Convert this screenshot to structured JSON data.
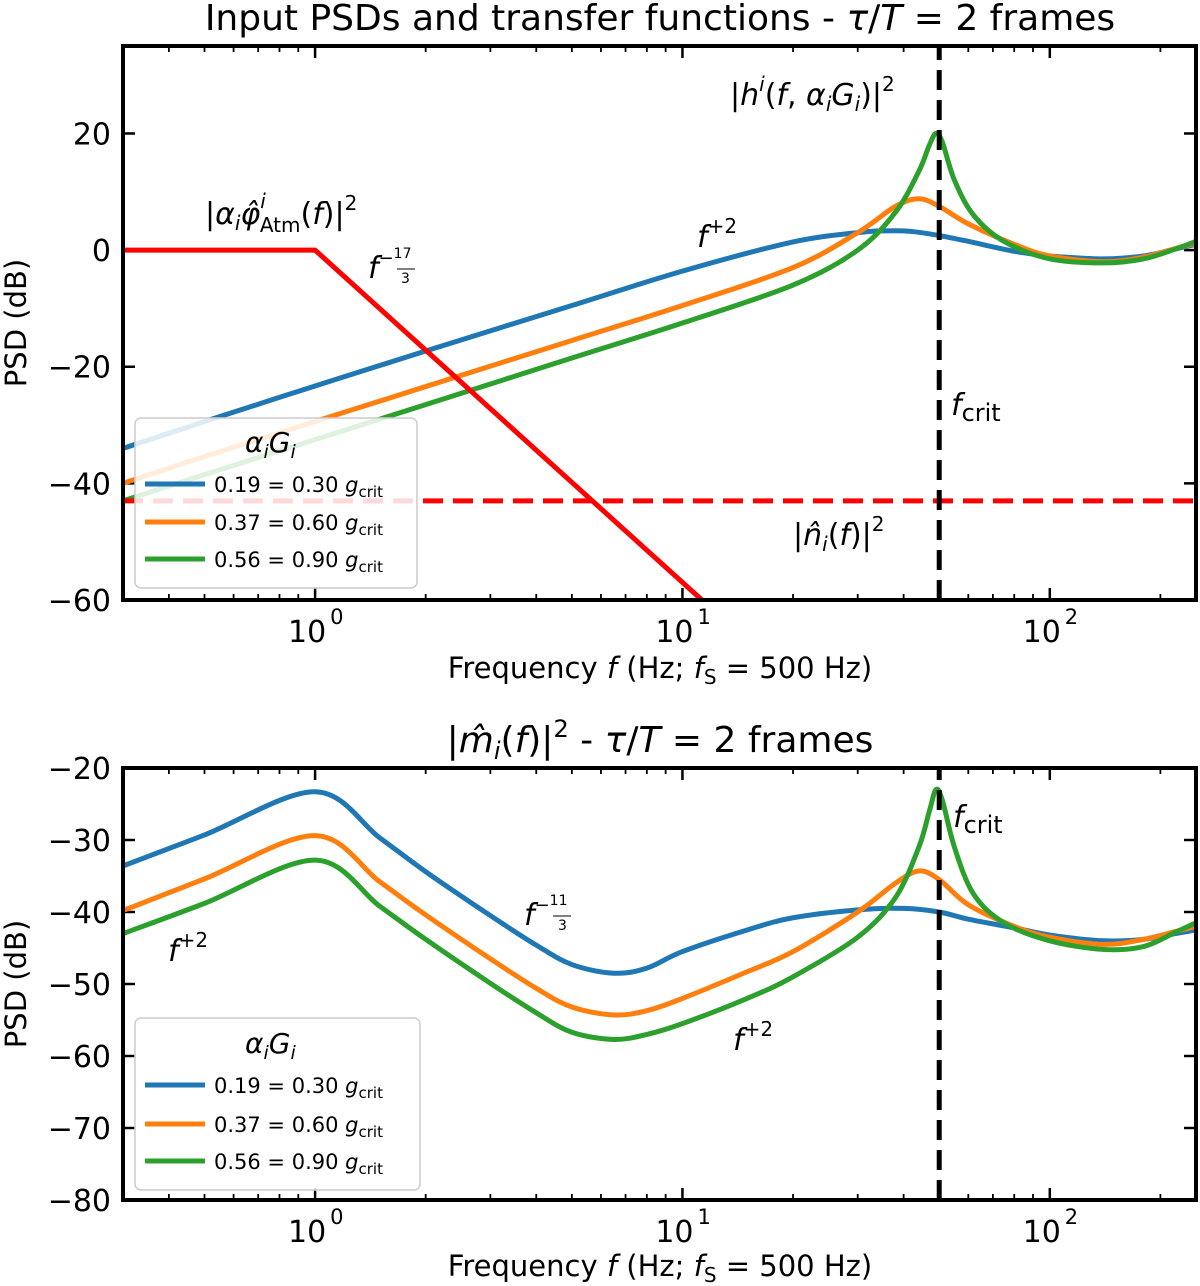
{
  "chart_data": [
    {
      "type": "line",
      "title": "Input PSDs and transfer functions - τ/T = 2 frames",
      "title_prefix": "Input PSDs and transfer functions - ",
      "title_math": "τ/T = 2 frames",
      "xlabel": "Frequency f (Hz; fS = 500 Hz)",
      "ylabel": "PSD (dB)",
      "xscale": "log",
      "xlim": [
        0.3,
        250
      ],
      "ylim": [
        -60,
        35
      ],
      "yticks": [
        20,
        0,
        -20,
        -40,
        -60
      ],
      "ytick_labels": [
        "20",
        "0",
        "−20",
        "−40",
        "−60"
      ],
      "xticks": [
        1,
        10,
        100
      ],
      "xtick_labels": [
        "10",
        "10",
        "10"
      ],
      "xtick_exponents": [
        "0",
        "1",
        "2"
      ],
      "legend": {
        "title": "αᵢGᵢ",
        "position": "lower-left",
        "entries": [
          "0.19 = 0.30 g_crit",
          "0.37 = 0.60 g_crit",
          "0.56 = 0.90 g_crit"
        ],
        "entry_values": [
          "0.19 = 0.30 ",
          "0.37 = 0.60 ",
          "0.56 = 0.90 "
        ],
        "entry_suffix": "g_crit"
      },
      "annotations": [
        "|αᵢ φ̂ⁱ_Atm(f)|²",
        "f^(−17/3)",
        "f^(+2)",
        "|hⁱ(f, αᵢGᵢ)|²",
        "f_crit",
        "|n̂ᵢ(f)|²"
      ],
      "series": [
        {
          "name": "0.19 = 0.30 g_crit",
          "color": "#1f77b4",
          "x": [
            0.3,
            0.5,
            1,
            2,
            5,
            10,
            20,
            30,
            36,
            42,
            50,
            60,
            80,
            100,
            140,
            180,
            220,
            250
          ],
          "y": [
            -34,
            -29.4,
            -23.3,
            -17.3,
            -9.5,
            -3.6,
            1.4,
            3.0,
            3.3,
            3.2,
            2.5,
            1.5,
            -0.2,
            -1.0,
            -1.5,
            -1.0,
            0.2,
            1.0
          ]
        },
        {
          "name": "0.37 = 0.60 g_crit",
          "color": "#ff7f0e",
          "x": [
            0.3,
            0.5,
            1,
            2,
            5,
            10,
            20,
            30,
            38,
            44,
            50,
            60,
            80,
            100,
            140,
            180,
            220,
            250
          ],
          "y": [
            -40,
            -35.4,
            -29.4,
            -23.4,
            -15.5,
            -9.5,
            -3.0,
            3.0,
            7.5,
            8.8,
            7.5,
            4.5,
            1.0,
            -1.0,
            -2.0,
            -1.2,
            0.3,
            1.2
          ]
        },
        {
          "name": "0.56 = 0.90 g_crit",
          "color": "#2ca02c",
          "x": [
            0.3,
            0.5,
            1,
            2,
            5,
            10,
            20,
            30,
            38,
            44,
            47,
            49,
            51,
            55,
            62,
            75,
            100,
            140,
            180,
            220,
            250
          ],
          "y": [
            -43,
            -38.5,
            -32.5,
            -26.5,
            -18.5,
            -12.5,
            -6.0,
            0.0,
            6.5,
            13.5,
            18.0,
            20.0,
            18.5,
            12.0,
            6.0,
            1.5,
            -1.5,
            -2.2,
            -1.5,
            0.2,
            1.5
          ]
        },
        {
          "name": "atmospheric PSD",
          "color": "#ff0000",
          "x": [
            0.3,
            1,
            11.3
          ],
          "y": [
            0,
            0,
            -60
          ]
        },
        {
          "name": "noise PSD",
          "color": "#ff0000",
          "dashed": true,
          "x": [
            0.3,
            250
          ],
          "y": [
            -43,
            -43
          ]
        },
        {
          "name": "f_crit",
          "color": "#000000",
          "dashed": true,
          "x": [
            50,
            50
          ],
          "y": [
            -60,
            35
          ]
        }
      ]
    },
    {
      "type": "line",
      "title": "|m̂ᵢ(f)|² - τ/T = 2 frames",
      "title_math": "τ/T = 2 frames",
      "xlabel": "Frequency f (Hz; fS = 500 Hz)",
      "ylabel": "PSD (dB)",
      "xscale": "log",
      "xlim": [
        0.3,
        250
      ],
      "ylim": [
        -80,
        -20
      ],
      "yticks": [
        -20,
        -30,
        -40,
        -50,
        -60,
        -70,
        -80
      ],
      "ytick_labels": [
        "−20",
        "−30",
        "−40",
        "−50",
        "−60",
        "−70",
        "−80"
      ],
      "xticks": [
        1,
        10,
        100
      ],
      "xtick_labels": [
        "10",
        "10",
        "10"
      ],
      "xtick_exponents": [
        "0",
        "1",
        "2"
      ],
      "legend": {
        "title": "αᵢGᵢ",
        "position": "lower-left",
        "entries": [
          "0.19 = 0.30 g_crit",
          "0.37 = 0.60 g_crit",
          "0.56 = 0.90 g_crit"
        ],
        "entry_values": [
          "0.19 = 0.30 ",
          "0.37 = 0.60 ",
          "0.56 = 0.90 "
        ],
        "entry_suffix": "g_crit"
      },
      "annotations": [
        "f_crit",
        "f^(−11/3)",
        "f^(+2)",
        "f^(+2)"
      ],
      "series": [
        {
          "name": "0.19 = 0.30 g_crit",
          "color": "#1f77b4",
          "x": [
            0.3,
            0.5,
            1,
            1.5,
            2,
            3,
            4,
            5,
            6.5,
            8,
            10,
            15,
            20,
            30,
            40,
            50,
            60,
            80,
            100,
            140,
            180,
            220,
            250
          ],
          "y": [
            -33.6,
            -29.3,
            -23.3,
            -29.7,
            -34.4,
            -40.5,
            -44.6,
            -47.3,
            -48.5,
            -47.8,
            -45.5,
            -42.5,
            -40.8,
            -39.7,
            -39.5,
            -40.0,
            -41.0,
            -42.2,
            -43.2,
            -44.0,
            -43.8,
            -43.0,
            -42.5
          ]
        },
        {
          "name": "0.37 = 0.60 g_crit",
          "color": "#ff7f0e",
          "x": [
            0.3,
            0.5,
            1,
            1.5,
            2,
            3,
            4,
            5,
            6.5,
            8,
            10,
            15,
            20,
            30,
            38,
            44,
            50,
            60,
            80,
            100,
            140,
            180,
            220,
            250
          ],
          "y": [
            -39.8,
            -35.4,
            -29.4,
            -35.8,
            -40.4,
            -46.5,
            -50.6,
            -53.2,
            -54.3,
            -53.7,
            -52.0,
            -48.3,
            -45.5,
            -40.0,
            -36.0,
            -34.3,
            -35.5,
            -39.0,
            -42.0,
            -43.5,
            -44.5,
            -43.8,
            -42.7,
            -42.0
          ]
        },
        {
          "name": "0.56 = 0.90 g_crit",
          "color": "#2ca02c",
          "x": [
            0.3,
            0.5,
            1,
            1.5,
            2,
            3,
            4,
            5,
            6.5,
            8,
            10,
            15,
            20,
            30,
            38,
            44,
            47,
            49,
            51,
            55,
            62,
            75,
            100,
            140,
            180,
            220,
            250
          ],
          "y": [
            -43.0,
            -38.8,
            -32.8,
            -39.2,
            -43.8,
            -49.9,
            -54.0,
            -56.7,
            -57.7,
            -57.0,
            -55.5,
            -52.0,
            -49.0,
            -43.5,
            -38.0,
            -31.0,
            -26.0,
            -23.0,
            -24.5,
            -31.0,
            -37.5,
            -41.5,
            -44.0,
            -45.2,
            -44.8,
            -42.8,
            -41.5
          ]
        },
        {
          "name": "f_crit",
          "color": "#000000",
          "dashed": true,
          "x": [
            50,
            50
          ],
          "y": [
            -80,
            -20
          ]
        }
      ]
    }
  ]
}
